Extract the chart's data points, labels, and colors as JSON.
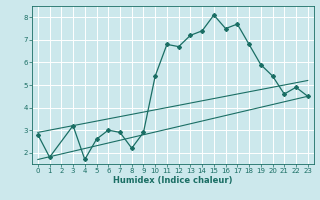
{
  "xlabel": "Humidex (Indice chaleur)",
  "ylabel": "",
  "bg_color": "#cce8ec",
  "grid_color": "#ffffff",
  "line_color": "#1a6e64",
  "xlim": [
    -0.5,
    23.5
  ],
  "ylim": [
    1.5,
    8.5
  ],
  "yticks": [
    2,
    3,
    4,
    5,
    6,
    7,
    8
  ],
  "xticks": [
    0,
    1,
    2,
    3,
    4,
    5,
    6,
    7,
    8,
    9,
    10,
    11,
    12,
    13,
    14,
    15,
    16,
    17,
    18,
    19,
    20,
    21,
    22,
    23
  ],
  "main_x": [
    0,
    1,
    3,
    4,
    5,
    6,
    7,
    8,
    9,
    10,
    11,
    12,
    13,
    14,
    15,
    16,
    17,
    18,
    19,
    20,
    21,
    22,
    23
  ],
  "main_y": [
    2.8,
    1.8,
    3.2,
    1.7,
    2.6,
    3.0,
    2.9,
    2.2,
    2.9,
    5.4,
    6.8,
    6.7,
    7.2,
    7.4,
    8.1,
    7.5,
    7.7,
    6.8,
    5.9,
    5.4,
    4.6,
    4.9,
    4.5
  ],
  "line2_x": [
    0,
    23
  ],
  "line2_y": [
    2.9,
    5.2
  ],
  "line3_x": [
    0,
    23
  ],
  "line3_y": [
    1.7,
    4.5
  ],
  "tick_fontsize": 5.0,
  "xlabel_fontsize": 6.0
}
